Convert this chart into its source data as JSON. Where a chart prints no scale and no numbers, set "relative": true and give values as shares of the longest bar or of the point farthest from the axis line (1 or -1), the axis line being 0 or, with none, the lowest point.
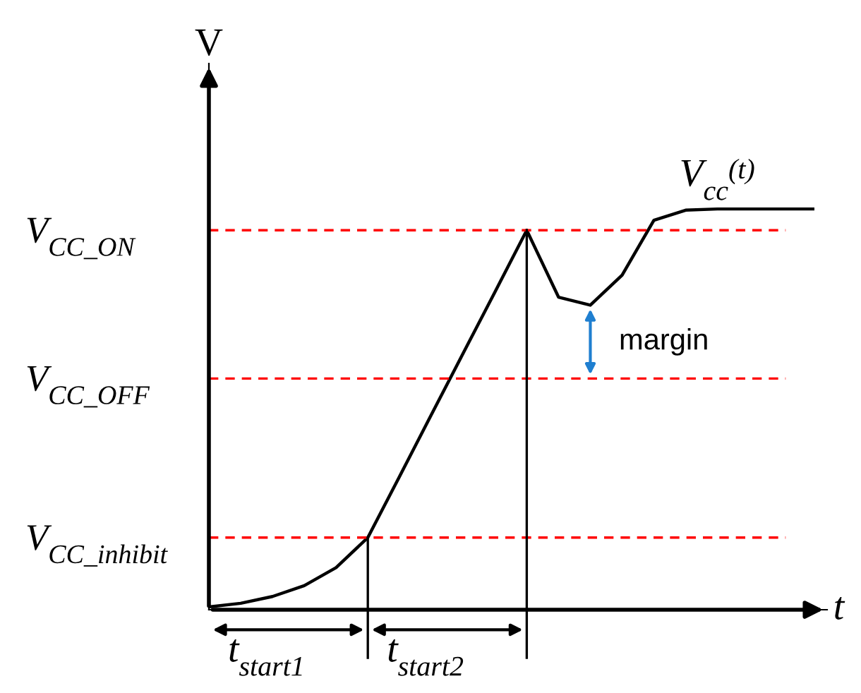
{
  "chart_data": {
    "type": "line",
    "relative": true,
    "xlabel": "t",
    "ylabel": "V",
    "legend": false,
    "marker": "none",
    "line_style": "solid",
    "categories": [
      null,
      null,
      null,
      null,
      null,
      null,
      null,
      null,
      null,
      null,
      null,
      null,
      null,
      null,
      null,
      null,
      null,
      null,
      null,
      null
    ],
    "series": [
      {
        "name": "V$_{cc}$$^{(t)}$",
        "color": "#000000",
        "values": [
          0.007,
          0.016,
          0.033,
          0.06,
          0.105,
          0.18,
          0.333,
          0.487,
          0.64,
          0.793,
          0.947,
          0.78,
          0.76,
          0.835,
          0.972,
          0.997,
          1.0,
          1.0,
          1.0,
          1.0
        ]
      }
    ],
    "ref_lines": [
      {
        "axis": "y",
        "value": 0.947,
        "label": "V$_{CC_ON}$",
        "color": "#ff0000",
        "line_style": "dashed"
      },
      {
        "axis": "y",
        "value": 0.577,
        "label": "V$_{CC_OFF}$",
        "color": "#ff0000",
        "line_style": "dashed"
      },
      {
        "axis": "y",
        "value": 0.18,
        "label": "V$_{CC_inhibit}$",
        "color": "#ff0000",
        "line_style": "dashed"
      }
    ],
    "annotations": [
      "margin",
      "t$_{start1}$",
      "t$_{start2}$"
    ]
  }
}
